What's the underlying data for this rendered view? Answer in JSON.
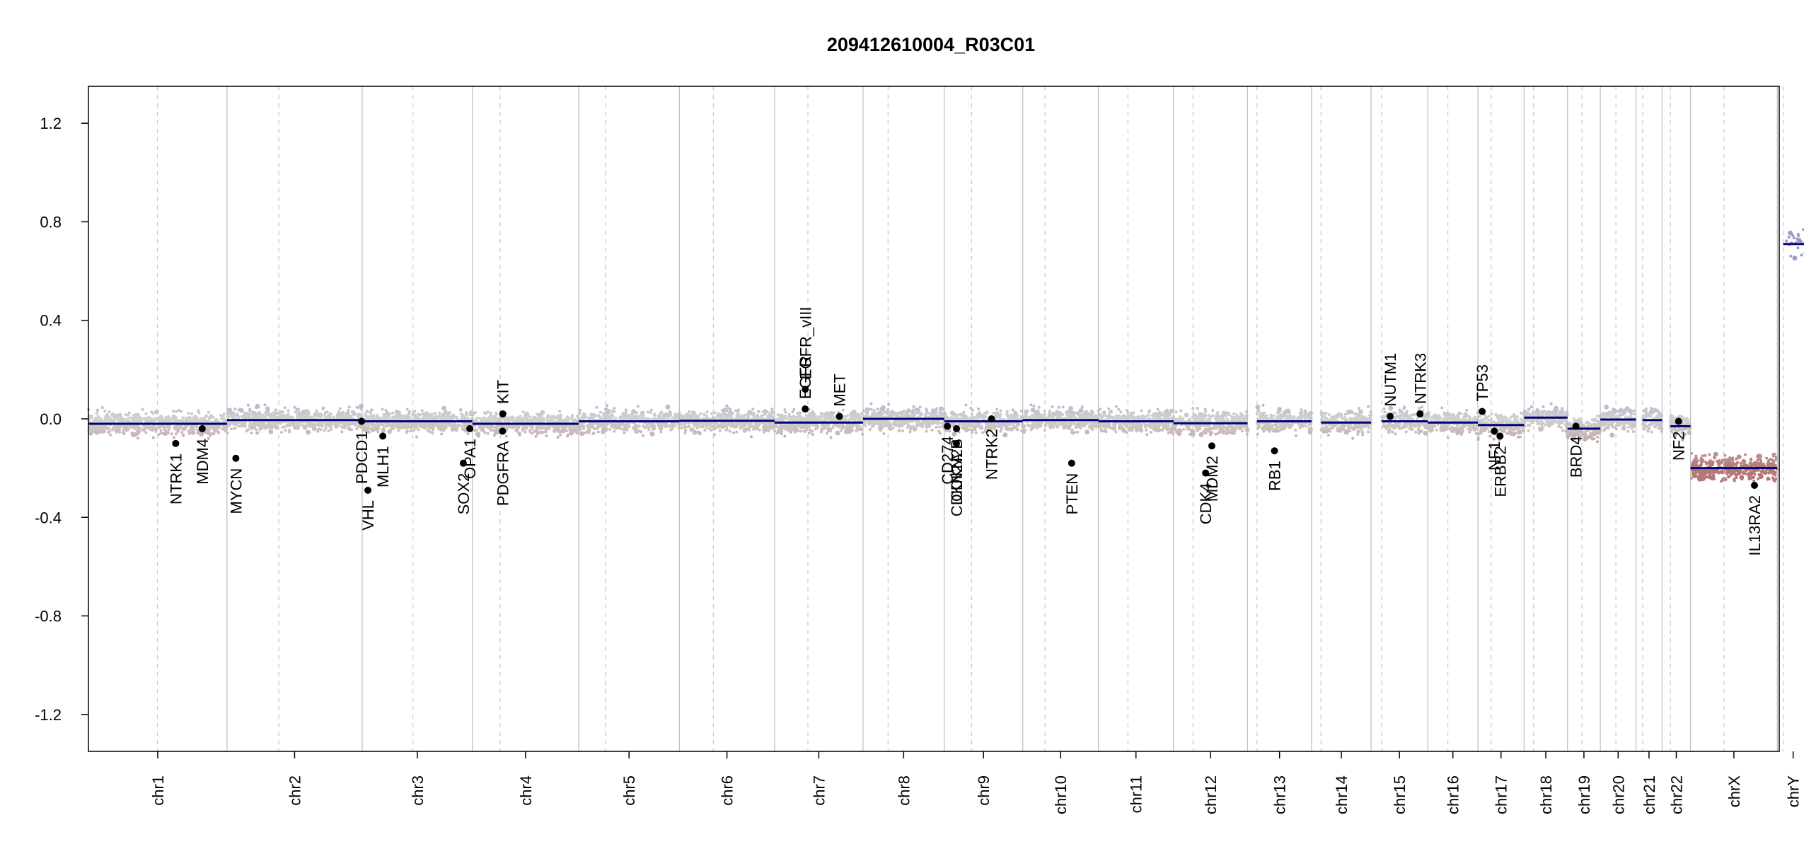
{
  "chart_data": {
    "type": "scatter",
    "title": "209412610004_R03C01",
    "xlabel": "",
    "ylabel": "",
    "ylim": [
      -1.35,
      1.35
    ],
    "yticks": [
      1.2,
      0.8,
      0.4,
      0.0,
      -0.4,
      -0.8,
      -1.2
    ],
    "ytick_labels": [
      "1.2",
      "0.8",
      "0.4",
      "0.0",
      "-0.4",
      "-0.8",
      "-1.2"
    ],
    "genome_length_mb": 3038.5,
    "chromosomes": [
      {
        "name": "chr1",
        "label": "chr1",
        "length_mb": 249,
        "centromere_mb": 124
      },
      {
        "name": "chr2",
        "label": "chr2",
        "length_mb": 243,
        "centromere_mb": 93
      },
      {
        "name": "chr3",
        "label": "chr3",
        "length_mb": 198,
        "centromere_mb": 91
      },
      {
        "name": "chr4",
        "label": "chr4",
        "length_mb": 191,
        "centromere_mb": 50
      },
      {
        "name": "chr5",
        "label": "chr5",
        "length_mb": 181,
        "centromere_mb": 48
      },
      {
        "name": "chr6",
        "label": "chr6",
        "length_mb": 171,
        "centromere_mb": 61
      },
      {
        "name": "chr7",
        "label": "chr7",
        "length_mb": 159,
        "centromere_mb": 60
      },
      {
        "name": "chr8",
        "label": "chr8",
        "length_mb": 146,
        "centromere_mb": 45
      },
      {
        "name": "chr9",
        "label": "chr9",
        "length_mb": 141,
        "centromere_mb": 49
      },
      {
        "name": "chr10",
        "label": "chr10",
        "length_mb": 136,
        "centromere_mb": 40
      },
      {
        "name": "chr11",
        "label": "chr11",
        "length_mb": 135,
        "centromere_mb": 53
      },
      {
        "name": "chr12",
        "label": "chr12",
        "length_mb": 133,
        "centromere_mb": 35
      },
      {
        "name": "chr13",
        "label": "chr13",
        "length_mb": 115,
        "centromere_mb": 17
      },
      {
        "name": "chr14",
        "label": "chr14",
        "length_mb": 107,
        "centromere_mb": 17
      },
      {
        "name": "chr15",
        "label": "chr15",
        "length_mb": 102,
        "centromere_mb": 19
      },
      {
        "name": "chr16",
        "label": "chr16",
        "length_mb": 90,
        "centromere_mb": 36
      },
      {
        "name": "chr17",
        "label": "chr17",
        "length_mb": 83,
        "centromere_mb": 24
      },
      {
        "name": "chr18",
        "label": "chr18",
        "length_mb": 78,
        "centromere_mb": 17
      },
      {
        "name": "chr19",
        "label": "chr19",
        "length_mb": 59,
        "centromere_mb": 26
      },
      {
        "name": "chr20",
        "label": "chr20",
        "length_mb": 64,
        "centromere_mb": 28
      },
      {
        "name": "chr21",
        "label": "chr21",
        "length_mb": 47,
        "centromere_mb": 12
      },
      {
        "name": "chr22",
        "label": "chr22",
        "length_mb": 51,
        "centromere_mb": 15
      },
      {
        "name": "chrX",
        "label": "chrX",
        "length_mb": 156,
        "centromere_mb": 60
      },
      {
        "name": "chrY",
        "label": "chrY",
        "length_mb": 57,
        "centromere_mb": 10.5
      }
    ],
    "segments": [
      {
        "chrom": "chr1",
        "start_mb": 0,
        "end_mb": 249,
        "value": -0.02
      },
      {
        "chrom": "chr2",
        "start_mb": 0,
        "end_mb": 243,
        "value": -0.005
      },
      {
        "chrom": "chr3",
        "start_mb": 0,
        "end_mb": 198,
        "value": -0.01
      },
      {
        "chrom": "chr4",
        "start_mb": 0,
        "end_mb": 191,
        "value": -0.02
      },
      {
        "chrom": "chr5",
        "start_mb": 0,
        "end_mb": 181,
        "value": -0.01
      },
      {
        "chrom": "chr6",
        "start_mb": 0,
        "end_mb": 171,
        "value": -0.008
      },
      {
        "chrom": "chr7",
        "start_mb": 0,
        "end_mb": 159,
        "value": -0.015
      },
      {
        "chrom": "chr8",
        "start_mb": 0,
        "end_mb": 146,
        "value": 0.0
      },
      {
        "chrom": "chr9",
        "start_mb": 0,
        "end_mb": 141,
        "value": -0.01
      },
      {
        "chrom": "chr10",
        "start_mb": 0,
        "end_mb": 136,
        "value": -0.005
      },
      {
        "chrom": "chr11",
        "start_mb": 0,
        "end_mb": 135,
        "value": -0.01
      },
      {
        "chrom": "chr12",
        "start_mb": 0,
        "end_mb": 133,
        "value": -0.018
      },
      {
        "chrom": "chr13",
        "start_mb": 17,
        "end_mb": 115,
        "value": -0.01
      },
      {
        "chrom": "chr14",
        "start_mb": 17,
        "end_mb": 107,
        "value": -0.015
      },
      {
        "chrom": "chr15",
        "start_mb": 19,
        "end_mb": 102,
        "value": -0.01
      },
      {
        "chrom": "chr16",
        "start_mb": 0,
        "end_mb": 90,
        "value": -0.015
      },
      {
        "chrom": "chr17",
        "start_mb": 0,
        "end_mb": 83,
        "value": -0.025
      },
      {
        "chrom": "chr18",
        "start_mb": 0,
        "end_mb": 78,
        "value": 0.005
      },
      {
        "chrom": "chr19",
        "start_mb": 0,
        "end_mb": 59,
        "value": -0.04
      },
      {
        "chrom": "chr20",
        "start_mb": 0,
        "end_mb": 64,
        "value": -0.003
      },
      {
        "chrom": "chr21",
        "start_mb": 12,
        "end_mb": 47,
        "value": -0.005
      },
      {
        "chrom": "chr22",
        "start_mb": 15,
        "end_mb": 51,
        "value": -0.03
      },
      {
        "chrom": "chrX",
        "start_mb": 0,
        "end_mb": 156,
        "value": -0.2
      },
      {
        "chrom": "chrY",
        "start_mb": 10.5,
        "end_mb": 57,
        "value": 0.71
      }
    ],
    "genes": [
      {
        "name": "NTRK1",
        "chrom": "chr1",
        "pos_mb": 156.8,
        "value": -0.1,
        "label_side": "below"
      },
      {
        "name": "MDM4",
        "chrom": "chr1",
        "pos_mb": 204.5,
        "value": -0.04,
        "label_side": "below"
      },
      {
        "name": "MYCN",
        "chrom": "chr2",
        "pos_mb": 15.9,
        "value": -0.16,
        "label_side": "below"
      },
      {
        "name": "PDCD1",
        "chrom": "chr2",
        "pos_mb": 241.9,
        "value": -0.01,
        "label_side": "below"
      },
      {
        "name": "VHL",
        "chrom": "chr3",
        "pos_mb": 10.2,
        "value": -0.29,
        "label_side": "below"
      },
      {
        "name": "MLH1",
        "chrom": "chr3",
        "pos_mb": 37.0,
        "value": -0.07,
        "label_side": "below"
      },
      {
        "name": "SOX2",
        "chrom": "chr3",
        "pos_mb": 181.7,
        "value": -0.18,
        "label_side": "below"
      },
      {
        "name": "OPA1",
        "chrom": "chr3",
        "pos_mb": 193.3,
        "value": -0.04,
        "label_side": "below"
      },
      {
        "name": "PDGFRA",
        "chrom": "chr4",
        "pos_mb": 54.2,
        "value": -0.05,
        "label_side": "below"
      },
      {
        "name": "KIT",
        "chrom": "chr4",
        "pos_mb": 54.6,
        "value": 0.02,
        "label_side": "above"
      },
      {
        "name": "EGFR",
        "chrom": "chr7",
        "pos_mb": 55.1,
        "value": 0.04,
        "label_side": "above"
      },
      {
        "name": "EGFR_vIII",
        "chrom": "chr7",
        "pos_mb": 55.2,
        "value": 0.12,
        "label_side": "above"
      },
      {
        "name": "MET",
        "chrom": "chr7",
        "pos_mb": 116.7,
        "value": 0.01,
        "label_side": "above"
      },
      {
        "name": "CD274",
        "chrom": "chr9",
        "pos_mb": 5.5,
        "value": -0.03,
        "label_side": "below"
      },
      {
        "name": "CDKN2A",
        "chrom": "chr9",
        "pos_mb": 21.9,
        "value": -0.1,
        "label_side": "below"
      },
      {
        "name": "CDKN2B",
        "chrom": "chr9",
        "pos_mb": 22.0,
        "value": -0.04,
        "label_side": "below"
      },
      {
        "name": "NTRK2",
        "chrom": "chr9",
        "pos_mb": 84.9,
        "value": 0.0,
        "label_side": "below"
      },
      {
        "name": "PTEN",
        "chrom": "chr10",
        "pos_mb": 87.9,
        "value": -0.18,
        "label_side": "below"
      },
      {
        "name": "CDK4",
        "chrom": "chr12",
        "pos_mb": 57.7,
        "value": -0.22,
        "label_side": "below"
      },
      {
        "name": "MDM2",
        "chrom": "chr12",
        "pos_mb": 68.8,
        "value": -0.11,
        "label_side": "below"
      },
      {
        "name": "RB1",
        "chrom": "chr13",
        "pos_mb": 48.4,
        "value": -0.13,
        "label_side": "below"
      },
      {
        "name": "NUTM1",
        "chrom": "chr15",
        "pos_mb": 34.3,
        "value": 0.01,
        "label_side": "above"
      },
      {
        "name": "NTRK3",
        "chrom": "chr15",
        "pos_mb": 88.0,
        "value": 0.02,
        "label_side": "above"
      },
      {
        "name": "TP53",
        "chrom": "chr17",
        "pos_mb": 7.6,
        "value": 0.03,
        "label_side": "above"
      },
      {
        "name": "NF1",
        "chrom": "chr17",
        "pos_mb": 29.4,
        "value": -0.05,
        "label_side": "below"
      },
      {
        "name": "ERBB2",
        "chrom": "chr17",
        "pos_mb": 39.7,
        "value": -0.07,
        "label_side": "below"
      },
      {
        "name": "BRD4",
        "chrom": "chr19",
        "pos_mb": 15.2,
        "value": -0.03,
        "label_side": "below"
      },
      {
        "name": "NF2",
        "chrom": "chr22",
        "pos_mb": 29.6,
        "value": -0.01,
        "label_side": "below"
      },
      {
        "name": "IL13RA2",
        "chrom": "chrX",
        "pos_mb": 115.0,
        "value": -0.27,
        "label_side": "below"
      }
    ],
    "colors": {
      "gain": "#9a9ac4",
      "neutral": "#d2d2d2",
      "loss": "#b47878",
      "segment": "#00007a",
      "gene_point": "#000000",
      "chrom_boundary": "#bdbdbd",
      "centromere": "#c8c8c8"
    },
    "grid": false,
    "legend": "none"
  }
}
